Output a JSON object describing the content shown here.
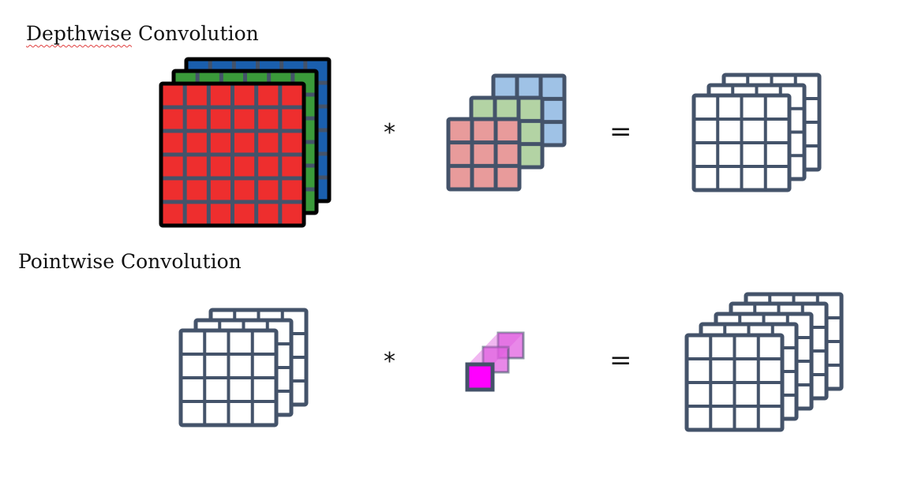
{
  "labels": {
    "depthwise_title_word1": "Depthwise",
    "depthwise_title_word2": "Convolution",
    "pointwise_title": "Pointwise Convolution",
    "operator_convolve": "*",
    "operator_equals": "="
  },
  "colors": {
    "grid_line": "#44536a",
    "input_border": "#000000",
    "input_red": "#ee2e2e",
    "input_green": "#3a9a3a",
    "input_blue": "#1a5fae",
    "kernel_red": "#e89b9b",
    "kernel_green": "#b3d3a4",
    "kernel_blue": "#9fc2e6",
    "pointwise_front": "#ff00ff",
    "pointwise_back": "#e060e0",
    "output_fill": "#ffffff"
  },
  "icons": {
    "input_stack": "rgb-6x6-grid-stack-icon",
    "kernel_stack": "3x3-kernel-stack-icon",
    "output_stack": "4x4-grid-stack-icon",
    "pointwise_kernel": "1x1-kernel-cube-icon"
  }
}
